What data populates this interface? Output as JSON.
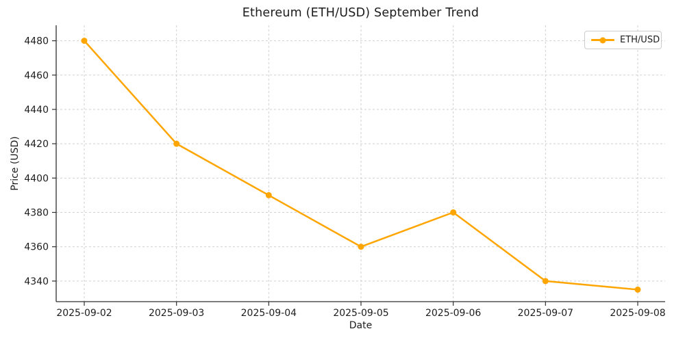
{
  "chart_data": {
    "type": "line",
    "title": "Ethereum (ETH/USD) September Trend",
    "xlabel": "Date",
    "ylabel": "Price (USD)",
    "categories": [
      "2025-09-02",
      "2025-09-03",
      "2025-09-04",
      "2025-09-05",
      "2025-09-06",
      "2025-09-07",
      "2025-09-08"
    ],
    "series": [
      {
        "name": "ETH/USD",
        "color": "#FFA500",
        "marker": "circle",
        "values": [
          4480,
          4420,
          4390,
          4360,
          4380,
          4340,
          4335
        ]
      }
    ],
    "yticks": [
      4340,
      4360,
      4380,
      4400,
      4420,
      4440,
      4460,
      4480
    ],
    "ylim": [
      4328,
      4489
    ],
    "grid": true,
    "grid_linestyle": "dashed",
    "legend_position": "upper right"
  },
  "style_colors": {
    "line": "#FFA500",
    "grid": "#cfcfcf",
    "spine": "#2e2e2e",
    "text": "#1c1c1c",
    "legend_border": "#cccccc"
  }
}
